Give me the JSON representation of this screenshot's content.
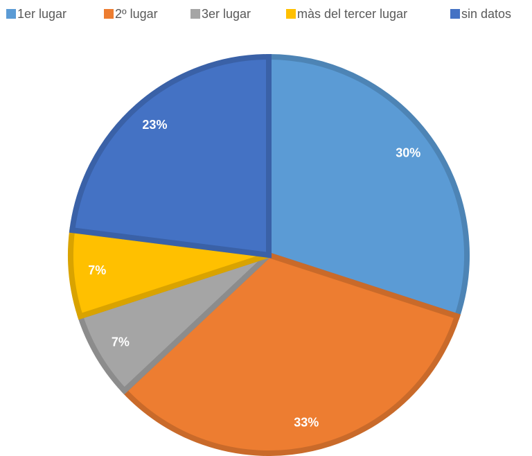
{
  "chart_data": {
    "type": "pie",
    "categories": [
      "1er lugar",
      "2º lugar",
      "3er lugar",
      "màs del tercer lugar",
      "sin datos"
    ],
    "values": [
      30,
      33,
      7,
      7,
      23
    ],
    "value_labels": [
      "30%",
      "33%",
      "7%",
      "7%",
      "23%"
    ],
    "colors": [
      "#5b9bd5",
      "#ed7d31",
      "#a5a5a5",
      "#ffc000",
      "#4472c4"
    ],
    "legend": "top"
  }
}
